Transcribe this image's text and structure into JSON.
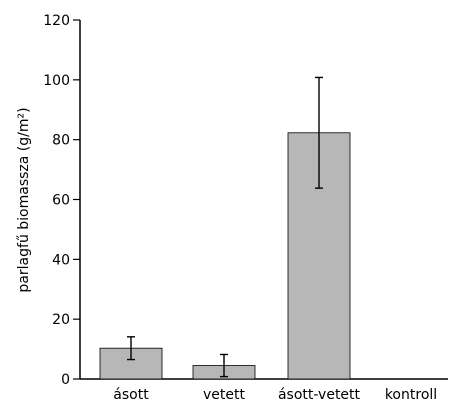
{
  "chart_data": {
    "type": "bar",
    "title": "",
    "xlabel": "",
    "ylabel": "parlagfű biomassza (g/m²)",
    "ylim": [
      0,
      120
    ],
    "yticks": [
      0,
      20,
      40,
      60,
      80,
      100,
      120
    ],
    "grid": false,
    "categories": [
      "ásott",
      "vetett",
      "ásott-vetett",
      "kontroll"
    ],
    "values": [
      10.3,
      4.5,
      82.3,
      0
    ],
    "errors": [
      3.8,
      3.7,
      18.5,
      0
    ],
    "bar_color": "#b7b7b7"
  }
}
